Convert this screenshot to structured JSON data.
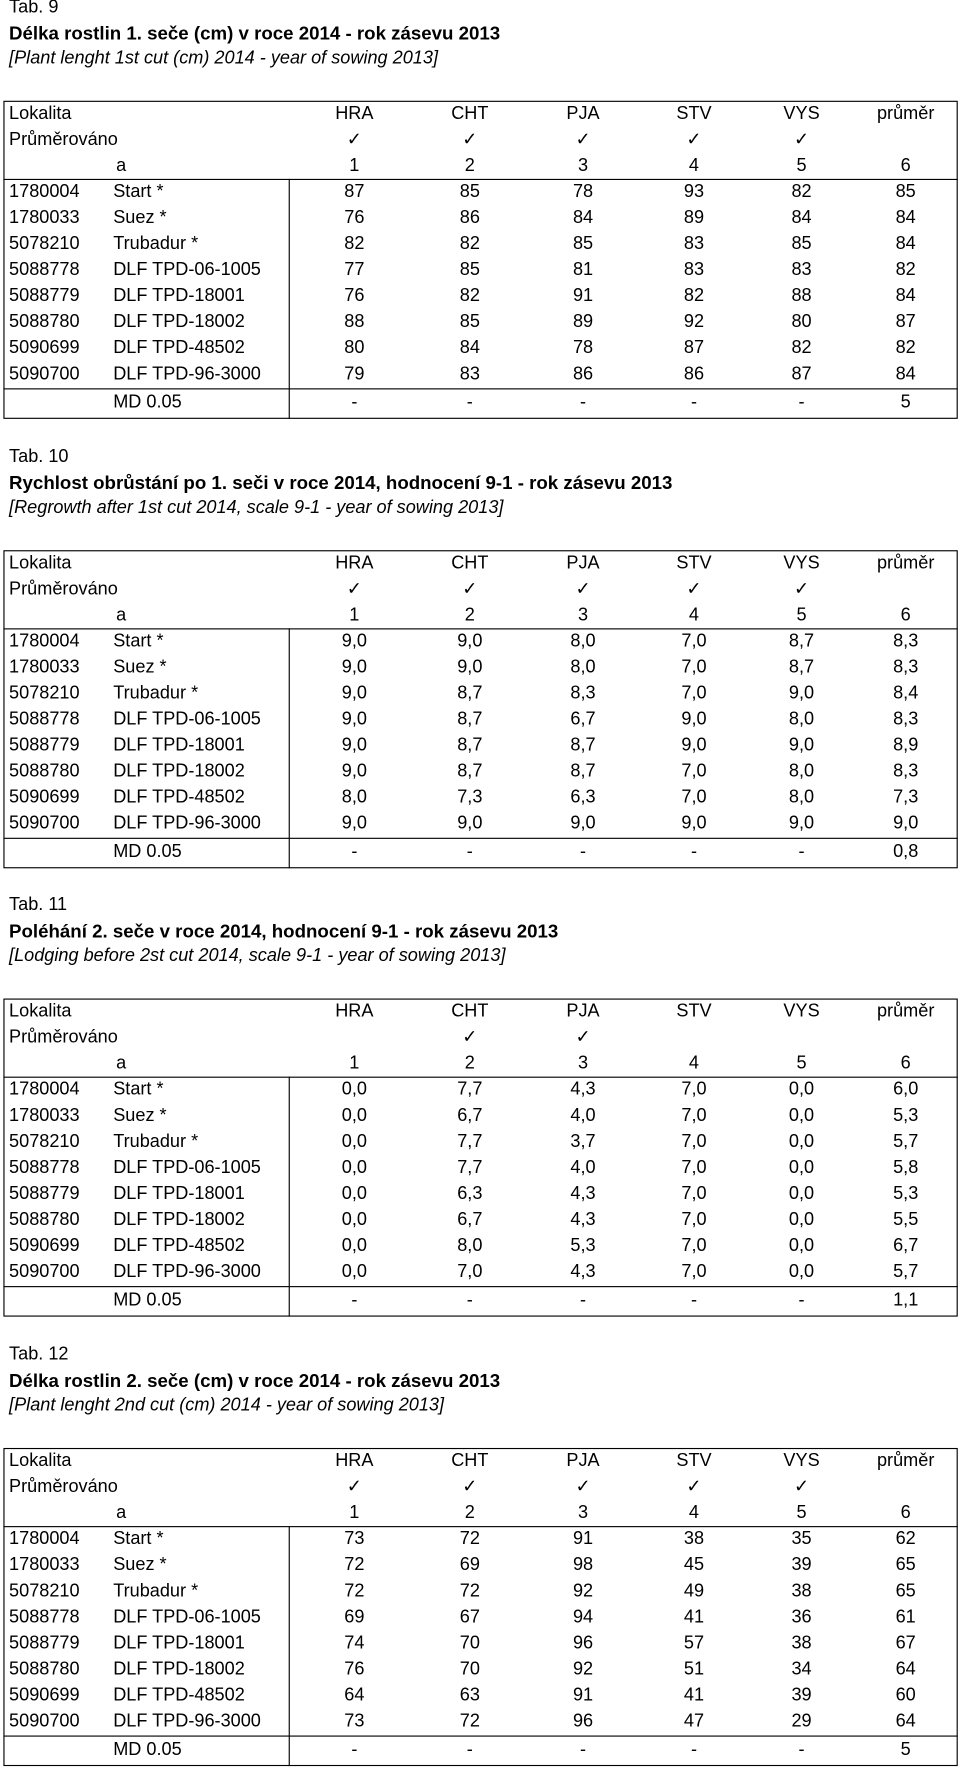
{
  "tables": [
    {
      "label": "Tab. 9",
      "title": "Délka rostlin 1. seče (cm) v roce 2014 - rok zásevu 2013",
      "subtitle": "[Plant lenght 1st cut (cm) 2014 - year of sowing 2013]",
      "header": [
        "Lokalita",
        "HRA",
        "CHT",
        "PJA",
        "STV",
        "VYS",
        "průměr"
      ],
      "averaged": {
        "label": "Průměrováno",
        "marks": [
          "✓",
          "✓",
          "✓",
          "✓",
          "✓",
          null
        ]
      },
      "index": [
        "a",
        "1",
        "2",
        "3",
        "4",
        "5",
        "6"
      ],
      "rows": [
        [
          "1780004",
          "Start *",
          "87",
          "85",
          "78",
          "93",
          "82",
          "85"
        ],
        [
          "1780033",
          "Suez *",
          "76",
          "86",
          "84",
          "89",
          "84",
          "84"
        ],
        [
          "5078210",
          "Trubadur *",
          "82",
          "82",
          "85",
          "83",
          "85",
          "84"
        ],
        [
          "5088778",
          "DLF TPD-06-1005",
          "77",
          "85",
          "81",
          "83",
          "83",
          "82"
        ],
        [
          "5088779",
          "DLF TPD-18001",
          "76",
          "82",
          "91",
          "82",
          "88",
          "84"
        ],
        [
          "5088780",
          "DLF TPD-18002",
          "88",
          "85",
          "89",
          "92",
          "80",
          "87"
        ],
        [
          "5090699",
          "DLF TPD-48502",
          "80",
          "84",
          "78",
          "87",
          "82",
          "82"
        ],
        [
          "5090700",
          "DLF TPD-96-3000",
          "79",
          "83",
          "86",
          "86",
          "87",
          "84"
        ]
      ],
      "md": {
        "label": "MD 0.05",
        "values": [
          "-",
          "-",
          "-",
          "-",
          "-",
          "5"
        ]
      }
    },
    {
      "label": "Tab. 10",
      "title": "Rychlost obrůstání po 1. seči v roce 2014, hodnocení 9-1 - rok zásevu 2013",
      "subtitle": "[Regrowth after 1st cut 2014, scale 9-1 - year of sowing 2013]",
      "header": [
        "Lokalita",
        "HRA",
        "CHT",
        "PJA",
        "STV",
        "VYS",
        "průměr"
      ],
      "averaged": {
        "label": "Průměrováno",
        "marks": [
          "✓",
          "✓",
          "✓",
          "✓",
          "✓",
          null
        ]
      },
      "index": [
        "a",
        "1",
        "2",
        "3",
        "4",
        "5",
        "6"
      ],
      "rows": [
        [
          "1780004",
          "Start *",
          "9,0",
          "9,0",
          "8,0",
          "7,0",
          "8,7",
          "8,3"
        ],
        [
          "1780033",
          "Suez *",
          "9,0",
          "9,0",
          "8,0",
          "7,0",
          "8,7",
          "8,3"
        ],
        [
          "5078210",
          "Trubadur *",
          "9,0",
          "8,7",
          "8,3",
          "7,0",
          "9,0",
          "8,4"
        ],
        [
          "5088778",
          "DLF TPD-06-1005",
          "9,0",
          "8,7",
          "6,7",
          "9,0",
          "8,0",
          "8,3"
        ],
        [
          "5088779",
          "DLF TPD-18001",
          "9,0",
          "8,7",
          "8,7",
          "9,0",
          "9,0",
          "8,9"
        ],
        [
          "5088780",
          "DLF TPD-18002",
          "9,0",
          "8,7",
          "8,7",
          "7,0",
          "8,0",
          "8,3"
        ],
        [
          "5090699",
          "DLF TPD-48502",
          "8,0",
          "7,3",
          "6,3",
          "7,0",
          "8,0",
          "7,3"
        ],
        [
          "5090700",
          "DLF TPD-96-3000",
          "9,0",
          "9,0",
          "9,0",
          "9,0",
          "9,0",
          "9,0"
        ]
      ],
      "md": {
        "label": "MD 0.05",
        "values": [
          "-",
          "-",
          "-",
          "-",
          "-",
          "0,8"
        ]
      }
    },
    {
      "label": "Tab. 11",
      "title": "Poléhání 2. seče v roce 2014, hodnocení 9-1 - rok zásevu 2013",
      "subtitle": "[Lodging before 2st cut  2014, scale 9-1 - year of sowing 2013]",
      "header": [
        "Lokalita",
        "HRA",
        "CHT",
        "PJA",
        "STV",
        "VYS",
        "průměr"
      ],
      "averaged": {
        "label": "Průměrováno",
        "marks": [
          null,
          "✓",
          "✓",
          null,
          null,
          null
        ]
      },
      "index": [
        "a",
        "1",
        "2",
        "3",
        "4",
        "5",
        "6"
      ],
      "rows": [
        [
          "1780004",
          "Start *",
          "0,0",
          "7,7",
          "4,3",
          "7,0",
          "0,0",
          "6,0"
        ],
        [
          "1780033",
          "Suez *",
          "0,0",
          "6,7",
          "4,0",
          "7,0",
          "0,0",
          "5,3"
        ],
        [
          "5078210",
          "Trubadur *",
          "0,0",
          "7,7",
          "3,7",
          "7,0",
          "0,0",
          "5,7"
        ],
        [
          "5088778",
          "DLF TPD-06-1005",
          "0,0",
          "7,7",
          "4,0",
          "7,0",
          "0,0",
          "5,8"
        ],
        [
          "5088779",
          "DLF TPD-18001",
          "0,0",
          "6,3",
          "4,3",
          "7,0",
          "0,0",
          "5,3"
        ],
        [
          "5088780",
          "DLF TPD-18002",
          "0,0",
          "6,7",
          "4,3",
          "7,0",
          "0,0",
          "5,5"
        ],
        [
          "5090699",
          "DLF TPD-48502",
          "0,0",
          "8,0",
          "5,3",
          "7,0",
          "0,0",
          "6,7"
        ],
        [
          "5090700",
          "DLF TPD-96-3000",
          "0,0",
          "7,0",
          "4,3",
          "7,0",
          "0,0",
          "5,7"
        ]
      ],
      "md": {
        "label": "MD 0.05",
        "values": [
          "-",
          "-",
          "-",
          "-",
          "-",
          "1,1"
        ]
      }
    },
    {
      "label": "Tab. 12",
      "title": "Délka rostlin 2. seče (cm) v roce 2014 - rok zásevu 2013",
      "subtitle": "[Plant lenght 2nd cut (cm) 2014 - year of sowing 2013]",
      "header": [
        "Lokalita",
        "HRA",
        "CHT",
        "PJA",
        "STV",
        "VYS",
        "průměr"
      ],
      "averaged": {
        "label": "Průměrováno",
        "marks": [
          "✓",
          "✓",
          "✓",
          "✓",
          "✓",
          null
        ]
      },
      "index": [
        "a",
        "1",
        "2",
        "3",
        "4",
        "5",
        "6"
      ],
      "rows": [
        [
          "1780004",
          "Start *",
          "73",
          "72",
          "91",
          "38",
          "35",
          "62"
        ],
        [
          "1780033",
          "Suez *",
          "72",
          "69",
          "98",
          "45",
          "39",
          "65"
        ],
        [
          "5078210",
          "Trubadur *",
          "72",
          "72",
          "92",
          "49",
          "38",
          "65"
        ],
        [
          "5088778",
          "DLF TPD-06-1005",
          "69",
          "67",
          "94",
          "41",
          "36",
          "61"
        ],
        [
          "5088779",
          "DLF TPD-18001",
          "74",
          "70",
          "96",
          "57",
          "38",
          "67"
        ],
        [
          "5088780",
          "DLF TPD-18002",
          "76",
          "70",
          "92",
          "51",
          "34",
          "64"
        ],
        [
          "5090699",
          "DLF TPD-48502",
          "64",
          "63",
          "91",
          "41",
          "39",
          "60"
        ],
        [
          "5090700",
          "DLF TPD-96-3000",
          "73",
          "72",
          "96",
          "47",
          "29",
          "64"
        ]
      ],
      "md": {
        "label": "MD 0.05",
        "values": [
          "-",
          "-",
          "-",
          "-",
          "-",
          "5"
        ]
      }
    }
  ]
}
